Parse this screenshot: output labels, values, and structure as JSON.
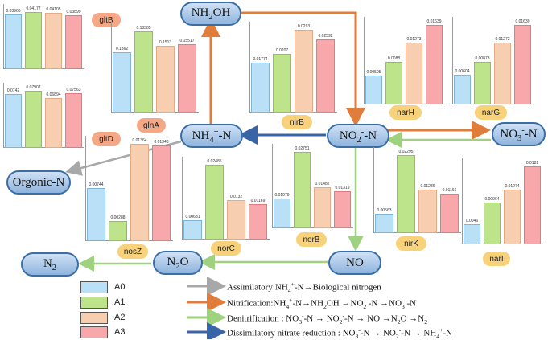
{
  "nodes": {
    "nh2oh": "NH2OH",
    "nh4": "NH4+-N",
    "no2": "NO2--N",
    "no3": "NO3--N",
    "orgonic": "Orgonic-N",
    "no": "NO",
    "n2o": "N2O",
    "n2": "N2"
  },
  "genes": [
    "gltB",
    "glnA",
    "gltD",
    "nirB",
    "narH",
    "narG",
    "nosZ",
    "norC",
    "norB",
    "nirK",
    "narI"
  ],
  "colors": {
    "A0": "#b9e0f6",
    "A1": "#bde38b",
    "A2": "#f7ceb0",
    "A3": "#f8a8ab",
    "assimilatory": "#a8a8a8",
    "nitrification": "#e07d3b",
    "denitrification": "#9fd27e",
    "dissimilatory": "#3865a8"
  },
  "legend": {
    "items": [
      "A0",
      "A1",
      "A2",
      "A3"
    ]
  },
  "pathways": [
    {
      "key": "assimilatory",
      "text": "Assimilatory:NH4+-N→Biological nitrogen"
    },
    {
      "key": "nitrification",
      "text": "Nitrification:NH4+-N→NH2OH →NO2--N →NO3--N"
    },
    {
      "key": "denitrification",
      "text": "Denitrification : NO3--N → NO2--N → NO →N2O →N2"
    },
    {
      "key": "dissimilatory",
      "text": "Dissimilatory nitrate reduction : NO3--N → NO2--N → NH4+-N"
    }
  ],
  "chart_data": [
    {
      "type": "bar",
      "gene": "gltB",
      "values": [
        0.03966,
        0.04177,
        0.04105,
        0.03899
      ],
      "labels": [
        "0.03966",
        "0.04177",
        "0.04105",
        "0.03899"
      ],
      "ylim": [
        0,
        0.0422
      ]
    },
    {
      "type": "bar",
      "gene": "gltD",
      "values": [
        0.0742,
        0.07907,
        0.06894,
        0.07563
      ],
      "labels": [
        "0.0742",
        "0.07907",
        "0.06894",
        "0.07563"
      ],
      "ylim": [
        0,
        0.0798
      ]
    },
    {
      "type": "bar",
      "gene": "glnA",
      "values": [
        0.1362,
        0.18385,
        0.1513,
        0.15517
      ],
      "labels": [
        "0.1362",
        "0.18385",
        "0.1513",
        "0.15517"
      ],
      "ylim": [
        0,
        0.19
      ]
    },
    {
      "type": "bar",
      "gene": "nirB",
      "values": [
        0.01774,
        0.0207,
        0.0293,
        0.02592
      ],
      "labels": [
        "0.01774",
        "0.0207",
        "0.0293",
        "0.02592"
      ],
      "ylim": [
        0,
        0.0296
      ]
    },
    {
      "type": "bar",
      "gene": "narH",
      "values": [
        0.00595,
        0.0088,
        0.01273,
        0.01639
      ],
      "labels": [
        "0.00595",
        "0.0088",
        "0.01273",
        "0.01639"
      ],
      "ylim": [
        0,
        0.0165
      ]
    },
    {
      "type": "bar",
      "gene": "narG",
      "values": [
        0.00604,
        0.00873,
        0.01272,
        0.01639
      ],
      "labels": [
        "0.00604",
        "0.00873",
        "0.01272",
        "0.01639"
      ],
      "ylim": [
        0,
        0.0165
      ]
    },
    {
      "type": "bar",
      "gene": "nosZ",
      "values": [
        0.00744,
        0.00288,
        0.01364,
        0.01348
      ],
      "labels": [
        "0.00744",
        "0.00288",
        "0.01364",
        "0.01348"
      ],
      "ylim": [
        0,
        0.0138
      ]
    },
    {
      "type": "bar",
      "gene": "norC",
      "values": [
        0.00631,
        0.02485,
        0.0132,
        0.01169
      ],
      "labels": [
        "0.00631",
        "0.02485",
        "0.0132",
        "0.01169"
      ],
      "ylim": [
        0,
        0.0251
      ]
    },
    {
      "type": "bar",
      "gene": "norB",
      "values": [
        0.01079,
        0.02751,
        0.01482,
        0.01319
      ],
      "labels": [
        "0.01079",
        "0.02751",
        "0.01482",
        "0.01319"
      ],
      "ylim": [
        0,
        0.0278
      ]
    },
    {
      "type": "bar",
      "gene": "nirK",
      "values": [
        0.00563,
        0.02295,
        0.01286,
        0.01166
      ],
      "labels": [
        "0.00563",
        "0.02295",
        "0.01286",
        "0.01166"
      ],
      "ylim": [
        0,
        0.0232
      ]
    },
    {
      "type": "bar",
      "gene": "narI",
      "values": [
        0.0046,
        0.00964,
        0.01274,
        0.0181
      ],
      "labels": [
        "0.0046",
        "0.00964",
        "0.01274",
        "0.0181"
      ],
      "ylim": [
        0,
        0.0183
      ]
    }
  ]
}
